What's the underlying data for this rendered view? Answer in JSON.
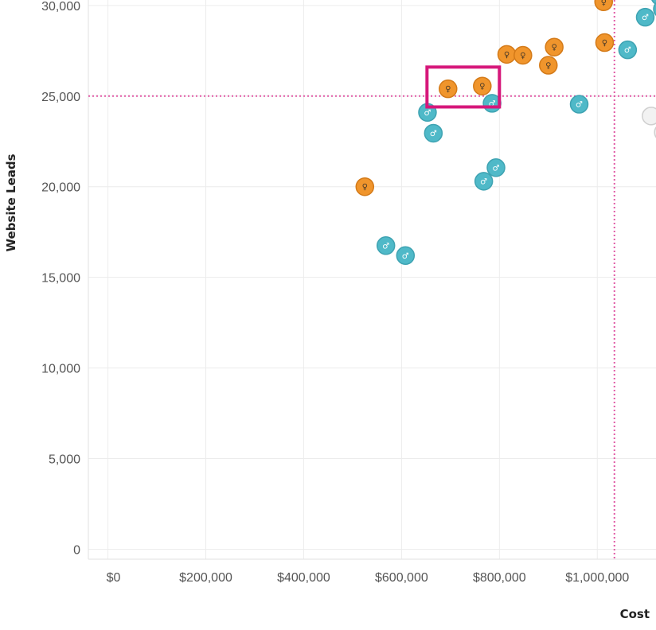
{
  "chart_data": {
    "type": "scatter",
    "xlabel": "Cost",
    "ylabel": "Website Leads",
    "xlim": [
      -40000,
      1120000
    ],
    "ylim": [
      -550,
      30300
    ],
    "x_ticks": [
      {
        "value": 0,
        "label": "$0"
      },
      {
        "value": 200000,
        "label": "$200,000"
      },
      {
        "value": 400000,
        "label": "$400,000"
      },
      {
        "value": 600000,
        "label": "$600,000"
      },
      {
        "value": 800000,
        "label": "$800,000"
      },
      {
        "value": 1000000,
        "label": "$1,000,000"
      }
    ],
    "y_ticks": [
      {
        "value": 0,
        "label": "0"
      },
      {
        "value": 5000,
        "label": "5,000"
      },
      {
        "value": 10000,
        "label": "10,000"
      },
      {
        "value": 15000,
        "label": "15,000"
      },
      {
        "value": 20000,
        "label": "20,000"
      },
      {
        "value": 25000,
        "label": "25,000"
      },
      {
        "value": 30000,
        "label": "30,000"
      }
    ],
    "reference_lines": {
      "x": 1035000,
      "y": 25000,
      "color": "#e05aa5"
    },
    "highlight": {
      "x_range": [
        652000,
        800000
      ],
      "y_range": [
        24400,
        26600
      ],
      "color": "#d6177a"
    },
    "series": [
      {
        "color": "#f0952c",
        "border": "#d47a18",
        "icon": "female-icon",
        "glyph": "♀",
        "glyph_color": "#4a3a28",
        "points": [
          {
            "x": 525000,
            "y": 20000
          },
          {
            "x": 695000,
            "y": 25400
          },
          {
            "x": 765000,
            "y": 25550
          },
          {
            "x": 815000,
            "y": 27300
          },
          {
            "x": 848000,
            "y": 27250
          },
          {
            "x": 900000,
            "y": 26700
          },
          {
            "x": 912000,
            "y": 27700
          },
          {
            "x": 1013000,
            "y": 30200
          },
          {
            "x": 1015000,
            "y": 27950
          }
        ]
      },
      {
        "color": "#4fb9c8",
        "border": "#3ea3b2",
        "icon": "male-icon",
        "glyph": "♂",
        "glyph_color": "#ffffff",
        "points": [
          {
            "x": 568000,
            "y": 16750
          },
          {
            "x": 608000,
            "y": 16200
          },
          {
            "x": 653000,
            "y": 24100
          },
          {
            "x": 665000,
            "y": 22950
          },
          {
            "x": 768000,
            "y": 20300
          },
          {
            "x": 785000,
            "y": 24600
          },
          {
            "x": 793000,
            "y": 21050
          },
          {
            "x": 963000,
            "y": 24550
          },
          {
            "x": 1062000,
            "y": 27550
          },
          {
            "x": 1098000,
            "y": 29350
          },
          {
            "x": 1128000,
            "y": 30500
          },
          {
            "x": 1133000,
            "y": 29800
          }
        ]
      },
      {
        "color": "#f2f2f2",
        "border": "#cfcfcf",
        "icon": "circle-icon",
        "glyph": "",
        "glyph_color": "#999999",
        "points": [
          {
            "x": 1110000,
            "y": 23900
          },
          {
            "x": 1135000,
            "y": 23000
          }
        ]
      }
    ]
  }
}
